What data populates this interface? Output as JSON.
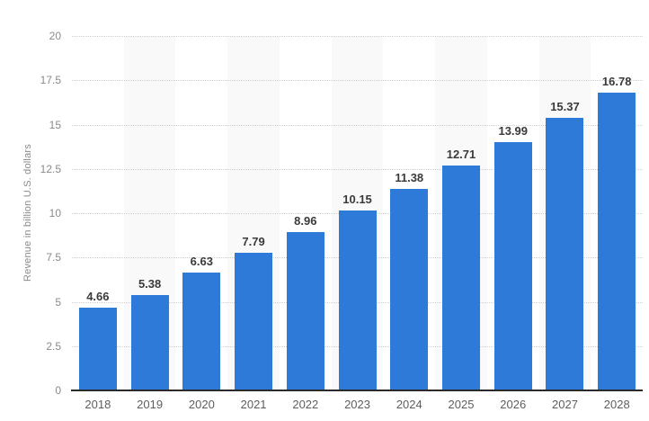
{
  "chart_data": {
    "type": "bar",
    "title": "",
    "xlabel": "",
    "ylabel": "Revenue in billion U.S. dollars",
    "categories": [
      "2018",
      "2019",
      "2020",
      "2021",
      "2022",
      "2023",
      "2024",
      "2025",
      "2026",
      "2027",
      "2028"
    ],
    "values": [
      4.66,
      5.38,
      6.63,
      7.79,
      8.96,
      10.15,
      11.38,
      12.71,
      13.99,
      15.37,
      16.78
    ],
    "value_labels": [
      "4.66",
      "5.38",
      "6.63",
      "7.79",
      "8.96",
      "10.15",
      "11.38",
      "12.71",
      "13.99",
      "15.37",
      "16.78"
    ],
    "ylim": [
      0,
      20
    ],
    "yticks": [
      0,
      2.5,
      5,
      7.5,
      10,
      12.5,
      15,
      17.5,
      20
    ],
    "ytick_labels": [
      "0",
      "2.5",
      "5",
      "7.5",
      "10",
      "12.5",
      "15",
      "17.5",
      "20"
    ],
    "grid": "horizontal-dotted",
    "legend": "none",
    "plot_background": "alternating vertical stripes per category, starting white",
    "colors": {
      "bar": "#2d7ad9",
      "stripe_alt": "#f9f9f9",
      "grid": "#cfcfcf",
      "axis_line": "#2b2b2b",
      "value_label": "#3a3a3a",
      "ytick_label": "#8a8a8a",
      "xtick_label": "#5e5e5e"
    }
  }
}
